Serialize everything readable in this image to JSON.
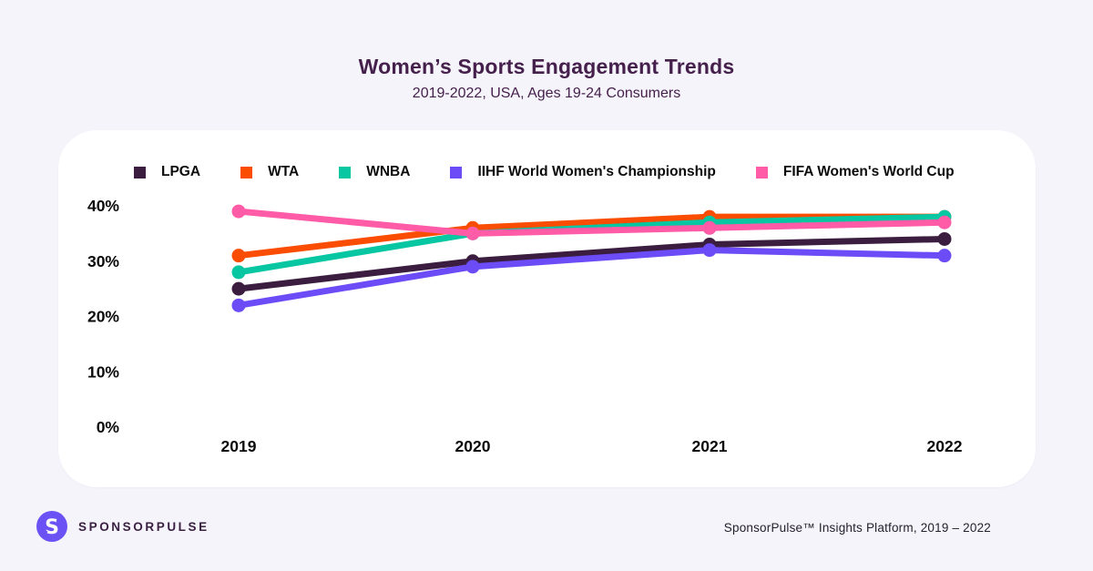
{
  "header": {
    "title": "Women’s Sports Engagement Trends",
    "subtitle": "2019-2022, USA, Ages 19-24 Consumers"
  },
  "chart_data": {
    "type": "line",
    "title": "Women’s Sports Engagement Trends",
    "subtitle": "2019-2022, USA, Ages 19-24 Consumers",
    "categories": [
      "2019",
      "2020",
      "2021",
      "2022"
    ],
    "series": [
      {
        "name": "LPGA",
        "color": "#3b1e3f",
        "values": [
          25,
          30,
          33,
          34
        ]
      },
      {
        "name": "WTA",
        "color": "#fb4d01",
        "values": [
          31,
          36,
          38,
          38
        ]
      },
      {
        "name": "WNBA",
        "color": "#07c6a2",
        "values": [
          28,
          35,
          37,
          38
        ]
      },
      {
        "name": "IIHF World Women's Championship",
        "color": "#6b4cf6",
        "values": [
          22,
          29,
          32,
          31
        ]
      },
      {
        "name": "FIFA Women's World Cup",
        "color": "#ff5ba7",
        "values": [
          39,
          35,
          36,
          37
        ]
      }
    ],
    "unit": "%",
    "xlabel": "",
    "ylabel": "",
    "ylim": [
      0,
      45
    ],
    "y_ticks": [
      {
        "value": 0,
        "label": "0%"
      },
      {
        "value": 10,
        "label": "10%"
      },
      {
        "value": 20,
        "label": "20%"
      },
      {
        "value": 30,
        "label": "30%"
      },
      {
        "value": 40,
        "label": "40%"
      }
    ],
    "grid": false,
    "legend_position": "top"
  },
  "footer": {
    "brand": "SPONSORPULSE",
    "logo_color": "#6a52f4",
    "attribution": "SponsorPulse™ Insights Platform,  2019 –  2022"
  }
}
